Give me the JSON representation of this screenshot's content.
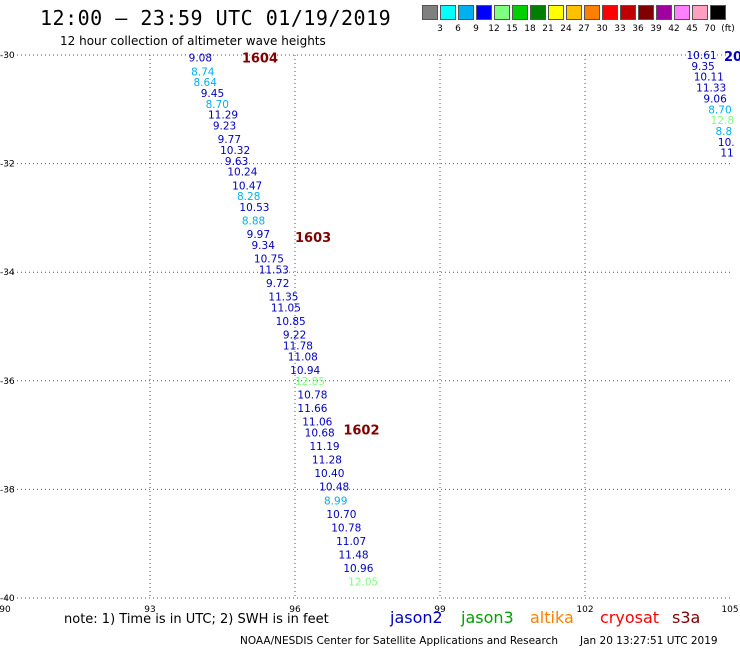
{
  "header": {
    "title": "12:00 – 23:59 UTC 01/19/2019",
    "subtitle": "12 hour collection of altimeter wave heights"
  },
  "scale": {
    "colors": [
      "#808080",
      "#00ffff",
      "#00b0f0",
      "#0000ff",
      "#80ff80",
      "#00d000",
      "#008000",
      "#ffff00",
      "#ffc000",
      "#ff8000",
      "#ff0000",
      "#c00000",
      "#800000",
      "#a000a0",
      "#ff80ff",
      "#ffa0c0",
      "#000000"
    ],
    "labels": [
      "3",
      "6",
      "9",
      "12",
      "15",
      "18",
      "21",
      "24",
      "27",
      "30",
      "33",
      "36",
      "39",
      "42",
      "45",
      "70",
      "(ft)"
    ],
    "colors_by_sat": {
      "jason2": "#0000c0",
      "jason3": "#00a000",
      "altika": "#ff8000",
      "cryosat": "#ff0000",
      "s3a": "#800000"
    }
  },
  "axes": {
    "lat_labels": [
      "-30",
      "-32",
      "-34",
      "-36",
      "-38",
      "-40"
    ],
    "lon_labels": [
      "90",
      "93",
      "96",
      "99",
      "102",
      "105"
    ],
    "lat_values": [
      -30,
      -32,
      -34,
      -36,
      -38,
      -40
    ],
    "lon_values": [
      90,
      93,
      96,
      99,
      102,
      105
    ],
    "lon_range": [
      90,
      105
    ],
    "lat_range": [
      -30,
      -40
    ],
    "grid": true
  },
  "passes": [
    {
      "label": "1604",
      "lon": 94.9,
      "lat": -30.05
    },
    {
      "label": "1603",
      "lon": 96.0,
      "lat": -33.35
    },
    {
      "label": "1602",
      "lon": 97.0,
      "lat": -36.9
    }
  ],
  "partial_label": "20",
  "observations": [
    {
      "v": "9.08",
      "c": "#0000c0",
      "lon": 93.8,
      "lat": -30.05
    },
    {
      "v": "8.74",
      "c": "#00b0f0",
      "lon": 93.85,
      "lat": -30.3
    },
    {
      "v": "8.64",
      "c": "#00b0f0",
      "lon": 93.9,
      "lat": -30.5
    },
    {
      "v": "9.45",
      "c": "#0000c0",
      "lon": 94.05,
      "lat": -30.7
    },
    {
      "v": "8.70",
      "c": "#00b0f0",
      "lon": 94.15,
      "lat": -30.9
    },
    {
      "v": "11.29",
      "c": "#0000c0",
      "lon": 94.2,
      "lat": -31.1
    },
    {
      "v": "9.23",
      "c": "#0000c0",
      "lon": 94.3,
      "lat": -31.3
    },
    {
      "v": "9.77",
      "c": "#0000c0",
      "lon": 94.4,
      "lat": -31.55
    },
    {
      "v": "10.32",
      "c": "#0000c0",
      "lon": 94.45,
      "lat": -31.75
    },
    {
      "v": "9.63",
      "c": "#0000c0",
      "lon": 94.55,
      "lat": -31.95
    },
    {
      "v": "10.24",
      "c": "#0000c0",
      "lon": 94.6,
      "lat": -32.15
    },
    {
      "v": "10.47",
      "c": "#0000c0",
      "lon": 94.7,
      "lat": -32.4
    },
    {
      "v": "8.28",
      "c": "#00b0f0",
      "lon": 94.8,
      "lat": -32.6
    },
    {
      "v": "10.53",
      "c": "#0000c0",
      "lon": 94.85,
      "lat": -32.8
    },
    {
      "v": "8.88",
      "c": "#00b0f0",
      "lon": 94.9,
      "lat": -33.05
    },
    {
      "v": "9.97",
      "c": "#0000c0",
      "lon": 95.0,
      "lat": -33.3
    },
    {
      "v": "9.34",
      "c": "#0000c0",
      "lon": 95.1,
      "lat": -33.5
    },
    {
      "v": "10.75",
      "c": "#0000c0",
      "lon": 95.15,
      "lat": -33.75
    },
    {
      "v": "11.53",
      "c": "#0000c0",
      "lon": 95.25,
      "lat": -33.95
    },
    {
      "v": "9.72",
      "c": "#0000c0",
      "lon": 95.4,
      "lat": -34.2
    },
    {
      "v": "11.35",
      "c": "#0000c0",
      "lon": 95.45,
      "lat": -34.45
    },
    {
      "v": "11.05",
      "c": "#0000c0",
      "lon": 95.5,
      "lat": -34.65
    },
    {
      "v": "10.85",
      "c": "#0000c0",
      "lon": 95.6,
      "lat": -34.9
    },
    {
      "v": "9.22",
      "c": "#0000c0",
      "lon": 95.75,
      "lat": -35.15
    },
    {
      "v": "11.78",
      "c": "#0000c0",
      "lon": 95.75,
      "lat": -35.35
    },
    {
      "v": "11.08",
      "c": "#0000c0",
      "lon": 95.85,
      "lat": -35.55
    },
    {
      "v": "10.94",
      "c": "#0000c0",
      "lon": 95.9,
      "lat": -35.8
    },
    {
      "v": "12.85",
      "c": "#80ff80",
      "lon": 96.0,
      "lat": -36.0
    },
    {
      "v": "10.78",
      "c": "#0000c0",
      "lon": 96.05,
      "lat": -36.25
    },
    {
      "v": "11.66",
      "c": "#0000c0",
      "lon": 96.05,
      "lat": -36.5
    },
    {
      "v": "11.06",
      "c": "#0000c0",
      "lon": 96.15,
      "lat": -36.75
    },
    {
      "v": "10.68",
      "c": "#0000c0",
      "lon": 96.2,
      "lat": -36.95
    },
    {
      "v": "11.19",
      "c": "#0000c0",
      "lon": 96.3,
      "lat": -37.2
    },
    {
      "v": "11.28",
      "c": "#0000c0",
      "lon": 96.35,
      "lat": -37.45
    },
    {
      "v": "10.40",
      "c": "#0000c0",
      "lon": 96.4,
      "lat": -37.7
    },
    {
      "v": "10.48",
      "c": "#0000c0",
      "lon": 96.5,
      "lat": -37.95
    },
    {
      "v": "8.99",
      "c": "#00b0f0",
      "lon": 96.6,
      "lat": -38.2
    },
    {
      "v": "10.70",
      "c": "#0000c0",
      "lon": 96.65,
      "lat": -38.45
    },
    {
      "v": "10.78",
      "c": "#0000c0",
      "lon": 96.75,
      "lat": -38.7
    },
    {
      "v": "11.07",
      "c": "#0000c0",
      "lon": 96.85,
      "lat": -38.95
    },
    {
      "v": "11.48",
      "c": "#0000c0",
      "lon": 96.9,
      "lat": -39.2
    },
    {
      "v": "10.96",
      "c": "#0000c0",
      "lon": 97.0,
      "lat": -39.45
    },
    {
      "v": "12.05",
      "c": "#80ff80",
      "lon": 97.1,
      "lat": -39.7
    }
  ],
  "edge_observations": [
    {
      "v": "10.61",
      "c": "#0000c0",
      "lon": 104.1,
      "lat": -30.0
    },
    {
      "v": "9.35",
      "c": "#0000c0",
      "lon": 104.2,
      "lat": -30.2
    },
    {
      "v": "10.11",
      "c": "#0000c0",
      "lon": 104.25,
      "lat": -30.4
    },
    {
      "v": "11.33",
      "c": "#0000c0",
      "lon": 104.3,
      "lat": -30.6
    },
    {
      "v": "9.06",
      "c": "#0000c0",
      "lon": 104.45,
      "lat": -30.8
    },
    {
      "v": "8.70",
      "c": "#00b0f0",
      "lon": 104.55,
      "lat": -31.0
    },
    {
      "v": "12.8",
      "c": "#80ff80",
      "lon": 104.6,
      "lat": -31.2
    },
    {
      "v": "8.8",
      "c": "#00b0f0",
      "lon": 104.7,
      "lat": -31.4
    },
    {
      "v": "10.",
      "c": "#0000c0",
      "lon": 104.75,
      "lat": -31.6
    },
    {
      "v": "11",
      "c": "#0000c0",
      "lon": 104.8,
      "lat": -31.8
    }
  ],
  "footer": {
    "note": "note:  1) Time is in UTC;  2) SWH is in feet",
    "satellites": [
      {
        "name": "jason2",
        "color": "#0000c0"
      },
      {
        "name": "jason3",
        "color": "#00a000"
      },
      {
        "name": "altika",
        "color": "#ff8000"
      },
      {
        "name": "cryosat",
        "color": "#ff0000"
      },
      {
        "name": "s3a",
        "color": "#800000"
      }
    ],
    "credit": "NOAA/NESDIS Center for Satellite Applications and Research",
    "timestamp": "Jan 20 13:27:51 UTC 2019"
  }
}
